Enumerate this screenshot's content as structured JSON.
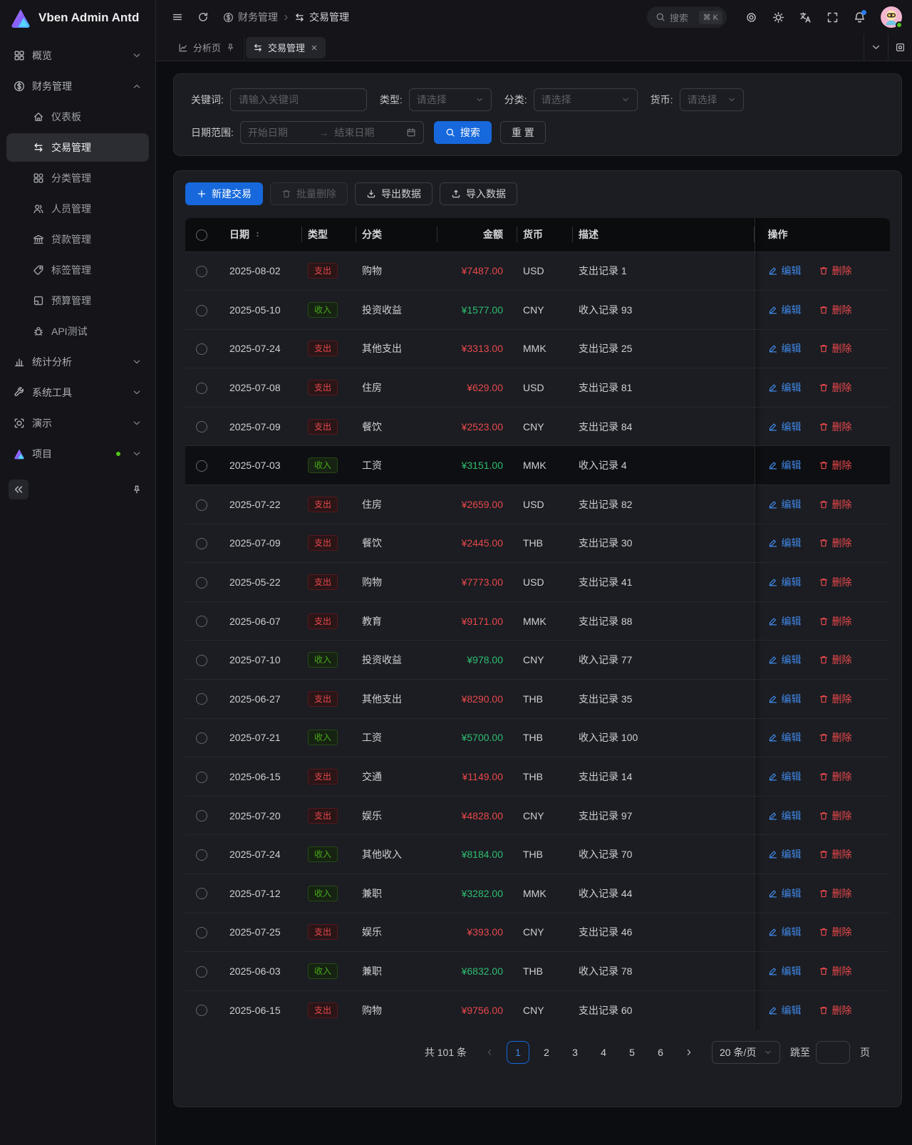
{
  "app": {
    "title": "Vben Admin Antd"
  },
  "header": {
    "breadcrumb": [
      {
        "label": "财务管理",
        "icon": "dollar-circle-icon"
      },
      {
        "label": "交易管理",
        "icon": "swap-icon"
      }
    ],
    "search": {
      "placeholder": "搜索",
      "shortcut": "⌘ K"
    },
    "icons": [
      "settings-icon",
      "theme-sun-icon",
      "language-icon",
      "fullscreen-icon",
      "notification-bell-icon"
    ]
  },
  "tabs": [
    {
      "label": "分析页",
      "icon": "chart-line-icon",
      "pinned": true
    },
    {
      "label": "交易管理",
      "icon": "swap-icon",
      "active": true,
      "closable": true
    }
  ],
  "sidebar": {
    "items": [
      {
        "id": "overview",
        "label": "概览",
        "icon": "grid-icon",
        "level": 1,
        "chevron": "down"
      },
      {
        "id": "finance",
        "label": "财务管理",
        "icon": "dollar-circle-icon",
        "level": 1,
        "chevron": "up"
      },
      {
        "id": "dashboard",
        "label": "仪表板",
        "icon": "home-icon",
        "level": 2
      },
      {
        "id": "transactions",
        "label": "交易管理",
        "icon": "swap-icon",
        "level": 2,
        "active": true
      },
      {
        "id": "categories",
        "label": "分类管理",
        "icon": "category-grid-icon",
        "level": 2
      },
      {
        "id": "people",
        "label": "人员管理",
        "icon": "people-icon",
        "level": 2
      },
      {
        "id": "loans",
        "label": "贷款管理",
        "icon": "bank-icon",
        "level": 2
      },
      {
        "id": "tags",
        "label": "标签管理",
        "icon": "tag-icon",
        "level": 2
      },
      {
        "id": "budget",
        "label": "预算管理",
        "icon": "budget-icon",
        "level": 2
      },
      {
        "id": "api-test",
        "label": "API测试",
        "icon": "bug-icon",
        "level": 2
      },
      {
        "id": "stats",
        "label": "统计分析",
        "icon": "bar-chart-icon",
        "level": 1,
        "chevron": "down"
      },
      {
        "id": "tools",
        "label": "系统工具",
        "icon": "wrench-icon",
        "level": 1,
        "chevron": "down"
      },
      {
        "id": "demo",
        "label": "演示",
        "icon": "scan-icon",
        "level": 1,
        "chevron": "down"
      },
      {
        "id": "project",
        "label": "项目",
        "icon": "project-logo-icon",
        "level": 1,
        "chevron": "down",
        "dot": true
      }
    ]
  },
  "filters": {
    "keyword": {
      "label": "关键词:",
      "placeholder": "请输入关键词"
    },
    "type": {
      "label": "类型:",
      "placeholder": "请选择"
    },
    "category": {
      "label": "分类:",
      "placeholder": "请选择"
    },
    "currency": {
      "label": "货币:",
      "placeholder": "请选择"
    },
    "date_range": {
      "label": "日期范围:",
      "start_placeholder": "开始日期",
      "end_placeholder": "结束日期",
      "arrow": "→"
    },
    "search_label": "搜索",
    "reset_label": "重 置"
  },
  "toolbar": {
    "create_label": "新建交易",
    "batch_delete_label": "批量删除",
    "export_label": "导出数据",
    "import_label": "导入数据"
  },
  "table": {
    "columns": [
      {
        "key": "date",
        "label": "日期",
        "sortable": true
      },
      {
        "key": "type",
        "label": "类型"
      },
      {
        "key": "category",
        "label": "分类"
      },
      {
        "key": "amount",
        "label": "金额",
        "align": "right"
      },
      {
        "key": "currency",
        "label": "货币"
      },
      {
        "key": "description",
        "label": "描述"
      },
      {
        "key": "actions",
        "label": "操作"
      }
    ],
    "row_actions": {
      "edit": "编辑",
      "delete": "删除"
    },
    "rows": [
      {
        "date": "2025-08-02",
        "type": "支出",
        "kind": "expense",
        "category": "购物",
        "amount": "¥7487.00",
        "currency": "USD",
        "description": "支出记录 1"
      },
      {
        "date": "2025-05-10",
        "type": "收入",
        "kind": "income",
        "category": "投资收益",
        "amount": "¥1577.00",
        "currency": "CNY",
        "description": "收入记录 93"
      },
      {
        "date": "2025-07-24",
        "type": "支出",
        "kind": "expense",
        "category": "其他支出",
        "amount": "¥3313.00",
        "currency": "MMK",
        "description": "支出记录 25"
      },
      {
        "date": "2025-07-08",
        "type": "支出",
        "kind": "expense",
        "category": "住房",
        "amount": "¥629.00",
        "currency": "USD",
        "description": "支出记录 81"
      },
      {
        "date": "2025-07-09",
        "type": "支出",
        "kind": "expense",
        "category": "餐饮",
        "amount": "¥2523.00",
        "currency": "CNY",
        "description": "支出记录 84"
      },
      {
        "date": "2025-07-03",
        "type": "收入",
        "kind": "income",
        "category": "工资",
        "amount": "¥3151.00",
        "currency": "MMK",
        "description": "收入记录 4",
        "highlighted": true
      },
      {
        "date": "2025-07-22",
        "type": "支出",
        "kind": "expense",
        "category": "住房",
        "amount": "¥2659.00",
        "currency": "USD",
        "description": "支出记录 82"
      },
      {
        "date": "2025-07-09",
        "type": "支出",
        "kind": "expense",
        "category": "餐饮",
        "amount": "¥2445.00",
        "currency": "THB",
        "description": "支出记录 30"
      },
      {
        "date": "2025-05-22",
        "type": "支出",
        "kind": "expense",
        "category": "购物",
        "amount": "¥7773.00",
        "currency": "USD",
        "description": "支出记录 41"
      },
      {
        "date": "2025-06-07",
        "type": "支出",
        "kind": "expense",
        "category": "教育",
        "amount": "¥9171.00",
        "currency": "MMK",
        "description": "支出记录 88"
      },
      {
        "date": "2025-07-10",
        "type": "收入",
        "kind": "income",
        "category": "投资收益",
        "amount": "¥978.00",
        "currency": "CNY",
        "description": "收入记录 77"
      },
      {
        "date": "2025-06-27",
        "type": "支出",
        "kind": "expense",
        "category": "其他支出",
        "amount": "¥8290.00",
        "currency": "THB",
        "description": "支出记录 35"
      },
      {
        "date": "2025-07-21",
        "type": "收入",
        "kind": "income",
        "category": "工资",
        "amount": "¥5700.00",
        "currency": "THB",
        "description": "收入记录 100"
      },
      {
        "date": "2025-06-15",
        "type": "支出",
        "kind": "expense",
        "category": "交通",
        "amount": "¥1149.00",
        "currency": "THB",
        "description": "支出记录 14"
      },
      {
        "date": "2025-07-20",
        "type": "支出",
        "kind": "expense",
        "category": "娱乐",
        "amount": "¥4828.00",
        "currency": "CNY",
        "description": "支出记录 97"
      },
      {
        "date": "2025-07-24",
        "type": "收入",
        "kind": "income",
        "category": "其他收入",
        "amount": "¥8184.00",
        "currency": "THB",
        "description": "收入记录 70"
      },
      {
        "date": "2025-07-12",
        "type": "收入",
        "kind": "income",
        "category": "兼职",
        "amount": "¥3282.00",
        "currency": "MMK",
        "description": "收入记录 44"
      },
      {
        "date": "2025-07-25",
        "type": "支出",
        "kind": "expense",
        "category": "娱乐",
        "amount": "¥393.00",
        "currency": "CNY",
        "description": "支出记录 46"
      },
      {
        "date": "2025-06-03",
        "type": "收入",
        "kind": "income",
        "category": "兼职",
        "amount": "¥6832.00",
        "currency": "THB",
        "description": "收入记录 78"
      },
      {
        "date": "2025-06-15",
        "type": "支出",
        "kind": "expense",
        "category": "购物",
        "amount": "¥9756.00",
        "currency": "CNY",
        "description": "支出记录 60"
      }
    ]
  },
  "pagination": {
    "total": "共 101 条",
    "pages": [
      1,
      2,
      3,
      4,
      5,
      6
    ],
    "current": 1,
    "page_size": "20 条/页",
    "jump_prefix": "跳至",
    "jump_suffix": "页"
  },
  "colors": {
    "accent": "#1668dc",
    "expense": "#e8484b",
    "income_tag": "#49aa19",
    "income_amount": "#2ebd71",
    "online": "#52c41a"
  }
}
